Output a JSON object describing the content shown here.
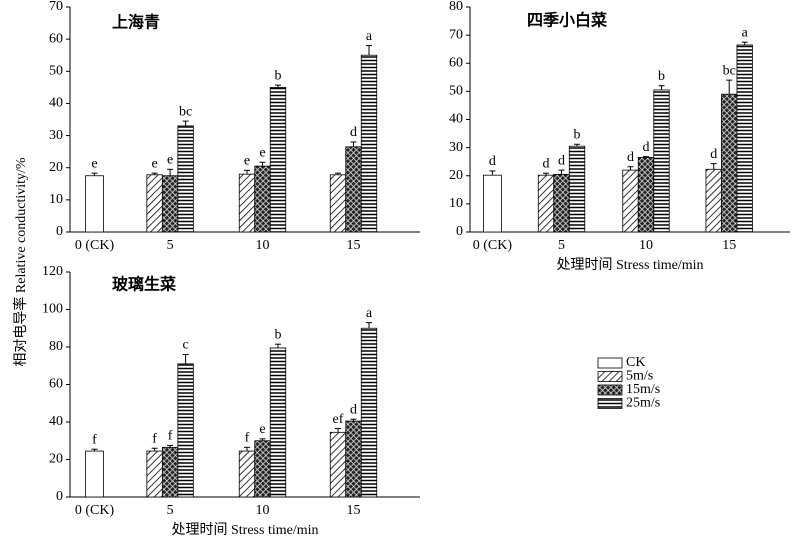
{
  "chart_data": [
    {
      "type": "bar",
      "title": "上海青",
      "ylabel": "相对电导率 Relative conductivity/%",
      "categories": [
        "0 (CK)",
        "5",
        "10",
        "15"
      ],
      "ylim": [
        0,
        70
      ],
      "yticks": [
        0,
        10,
        20,
        30,
        40,
        50,
        60,
        70
      ],
      "series": [
        {
          "name": "CK",
          "hatch": "none",
          "values": [
            17.5,
            null,
            null,
            null
          ],
          "errors": [
            0.8,
            null,
            null,
            null
          ],
          "letters": [
            "e",
            null,
            null,
            null
          ]
        },
        {
          "name": "5m/s",
          "hatch": "diagonal",
          "values": [
            null,
            17.8,
            18,
            17.8
          ],
          "errors": [
            null,
            0.5,
            1.2,
            0.5
          ],
          "letters": [
            null,
            "e",
            "e",
            null
          ]
        },
        {
          "name": "15m/s",
          "hatch": "cross",
          "values": [
            null,
            17.5,
            20.5,
            26.5
          ],
          "errors": [
            null,
            2,
            1.2,
            1.5
          ],
          "letters": [
            null,
            "e",
            "e",
            "d"
          ]
        },
        {
          "name": "25m/s",
          "hatch": "horizontal",
          "values": [
            null,
            33,
            45,
            55
          ],
          "errors": [
            null,
            1.5,
            0.7,
            3
          ],
          "letters": [
            null,
            "bc",
            "b",
            "a"
          ]
        }
      ]
    },
    {
      "type": "bar",
      "title": "四季小白菜",
      "xlabel": "处理时间 Stress time/min",
      "categories": [
        "0 (CK)",
        "5",
        "10",
        "15"
      ],
      "ylim": [
        0,
        80
      ],
      "yticks": [
        0,
        10,
        20,
        30,
        40,
        50,
        60,
        70,
        80
      ],
      "series": [
        {
          "name": "CK",
          "hatch": "none",
          "values": [
            20.2,
            null,
            null,
            null
          ],
          "errors": [
            1.5,
            null,
            null,
            null
          ],
          "letters": [
            "d",
            null,
            null,
            null
          ]
        },
        {
          "name": "5m/s",
          "hatch": "diagonal",
          "values": [
            null,
            20.2,
            22,
            22.3
          ],
          "errors": [
            null,
            0.7,
            1.2,
            2
          ],
          "letters": [
            null,
            "d",
            "d",
            "d"
          ]
        },
        {
          "name": "15m/s",
          "hatch": "cross",
          "values": [
            null,
            20.5,
            26.5,
            49
          ],
          "errors": [
            null,
            1.5,
            0.3,
            5
          ],
          "letters": [
            null,
            "d",
            "d",
            "bc"
          ]
        },
        {
          "name": "25m/s",
          "hatch": "horizontal",
          "values": [
            null,
            30.5,
            50.5,
            66.5
          ],
          "errors": [
            null,
            0.7,
            1.5,
            1
          ],
          "letters": [
            null,
            "b",
            "b",
            "a"
          ]
        }
      ]
    },
    {
      "type": "bar",
      "title": "玻璃生菜",
      "xlabel": "处理时间 Stress time/min",
      "categories": [
        "0 (CK)",
        "5",
        "10",
        "15"
      ],
      "ylim": [
        0,
        120
      ],
      "yticks": [
        0,
        20,
        40,
        60,
        80,
        100,
        120
      ],
      "series": [
        {
          "name": "CK",
          "hatch": "none",
          "values": [
            24.5,
            null,
            null,
            null
          ],
          "errors": [
            1,
            null,
            null,
            null
          ],
          "letters": [
            "f",
            null,
            null,
            null
          ]
        },
        {
          "name": "5m/s",
          "hatch": "diagonal",
          "values": [
            null,
            24.5,
            24.5,
            34.5
          ],
          "errors": [
            null,
            1.5,
            2,
            2
          ],
          "letters": [
            null,
            "f",
            "f",
            "ef"
          ]
        },
        {
          "name": "15m/s",
          "hatch": "cross",
          "values": [
            null,
            26.5,
            30,
            40.5
          ],
          "errors": [
            null,
            1,
            1,
            1
          ],
          "letters": [
            null,
            "f",
            "e",
            "d"
          ]
        },
        {
          "name": "25m/s",
          "hatch": "horizontal",
          "values": [
            null,
            71,
            79.5,
            90
          ],
          "errors": [
            null,
            5,
            2,
            3
          ],
          "letters": [
            null,
            "c",
            "b",
            "a"
          ]
        }
      ]
    }
  ]
}
